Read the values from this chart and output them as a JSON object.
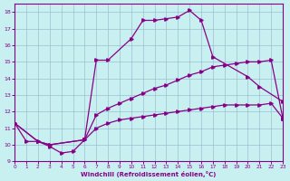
{
  "xlabel": "Windchill (Refroidissement éolien,°C)",
  "xlim": [
    0,
    23
  ],
  "ylim": [
    9,
    18.5
  ],
  "yticks": [
    9,
    10,
    11,
    12,
    13,
    14,
    15,
    16,
    17,
    18
  ],
  "xticks": [
    0,
    1,
    2,
    3,
    4,
    5,
    6,
    7,
    8,
    9,
    10,
    11,
    12,
    13,
    14,
    15,
    16,
    17,
    18,
    19,
    20,
    21,
    22,
    23
  ],
  "background_color": "#c8f0f0",
  "line_color": "#880088",
  "grid_color": "#99bbcc",
  "curve1_x": [
    0,
    1,
    2,
    3,
    4,
    5,
    6,
    7,
    8,
    10,
    11,
    12,
    13,
    14,
    15,
    16,
    17,
    20,
    21,
    23
  ],
  "curve1_y": [
    11.3,
    10.2,
    10.2,
    9.9,
    9.5,
    9.6,
    10.3,
    15.1,
    15.1,
    16.4,
    17.5,
    17.5,
    17.6,
    17.7,
    18.1,
    17.5,
    15.3,
    14.1,
    13.5,
    12.6
  ],
  "curve2_x": [
    0,
    2,
    3,
    6,
    7,
    8,
    9,
    10,
    11,
    12,
    13,
    14,
    15,
    16,
    17,
    18,
    19,
    20,
    21,
    22,
    23
  ],
  "curve2_y": [
    11.3,
    10.2,
    10.0,
    10.3,
    11.8,
    12.2,
    12.5,
    12.8,
    13.1,
    13.4,
    13.6,
    13.9,
    14.2,
    14.4,
    14.7,
    14.8,
    14.9,
    15.0,
    15.0,
    15.1,
    11.6
  ],
  "curve3_x": [
    0,
    2,
    3,
    6,
    7,
    8,
    9,
    10,
    11,
    12,
    13,
    14,
    15,
    16,
    17,
    18,
    19,
    20,
    21,
    22,
    23
  ],
  "curve3_y": [
    11.3,
    10.2,
    10.0,
    10.3,
    11.0,
    11.3,
    11.5,
    11.6,
    11.7,
    11.8,
    11.9,
    12.0,
    12.1,
    12.2,
    12.3,
    12.4,
    12.4,
    12.4,
    12.4,
    12.5,
    11.6
  ]
}
